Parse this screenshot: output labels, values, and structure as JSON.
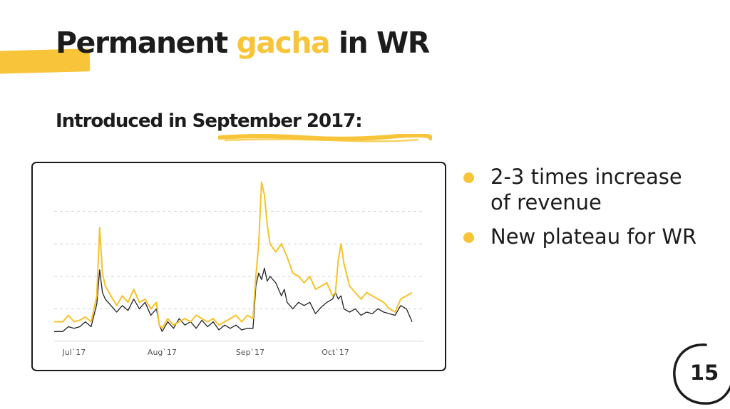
{
  "slide": {
    "title_part1": "Permanent ",
    "title_accent": "gacha",
    "title_part2": " in WR",
    "subtitle_prefix": "Introduced in ",
    "subtitle_highlight": "September 2017:",
    "page_number": "15"
  },
  "bullets": [
    {
      "text_line1": "2-3 times increase",
      "text_line2": "of revenue"
    },
    {
      "text_line1": "New plateau for WR"
    }
  ],
  "colors": {
    "accent": "#f8c53a",
    "text": "#1c1c1c",
    "series_black": "#222222",
    "series_yellow": "#f5c229"
  },
  "chart_data": {
    "type": "line",
    "xlabel": "",
    "ylabel": "",
    "x_ticks": [
      "Jul`17",
      "Aug`17",
      "Sep`17",
      "Oct`17"
    ],
    "x_tick_days": [
      7,
      38,
      69,
      99
    ],
    "x_range": [
      0,
      130
    ],
    "ylim": [
      0,
      100
    ],
    "y_gridlines": [
      20,
      40,
      60,
      80
    ],
    "grid": true,
    "legend": "none",
    "series": [
      {
        "color": "#222222",
        "points": [
          [
            0,
            6
          ],
          [
            3,
            6
          ],
          [
            5,
            9
          ],
          [
            7,
            8
          ],
          [
            9,
            9
          ],
          [
            11,
            12
          ],
          [
            13,
            9
          ],
          [
            15,
            23
          ],
          [
            16,
            44
          ],
          [
            17,
            30
          ],
          [
            18,
            26
          ],
          [
            20,
            22
          ],
          [
            22,
            18
          ],
          [
            24,
            22
          ],
          [
            26,
            19
          ],
          [
            28,
            26
          ],
          [
            30,
            20
          ],
          [
            32,
            24
          ],
          [
            34,
            16
          ],
          [
            36,
            20
          ],
          [
            37,
            10
          ],
          [
            38,
            6
          ],
          [
            40,
            12
          ],
          [
            42,
            8
          ],
          [
            44,
            14
          ],
          [
            46,
            10
          ],
          [
            48,
            12
          ],
          [
            50,
            8
          ],
          [
            52,
            13
          ],
          [
            54,
            9
          ],
          [
            56,
            12
          ],
          [
            58,
            7
          ],
          [
            60,
            10
          ],
          [
            62,
            8
          ],
          [
            64,
            10
          ],
          [
            66,
            7
          ],
          [
            68,
            8
          ],
          [
            70,
            8
          ],
          [
            71,
            34
          ],
          [
            72,
            42
          ],
          [
            73,
            38
          ],
          [
            74,
            45
          ],
          [
            75,
            37
          ],
          [
            76,
            40
          ],
          [
            78,
            36
          ],
          [
            80,
            28
          ],
          [
            81,
            32
          ],
          [
            82,
            24
          ],
          [
            84,
            20
          ],
          [
            86,
            24
          ],
          [
            88,
            22
          ],
          [
            90,
            24
          ],
          [
            92,
            17
          ],
          [
            94,
            21
          ],
          [
            96,
            24
          ],
          [
            98,
            26
          ],
          [
            99,
            30
          ],
          [
            100,
            26
          ],
          [
            101,
            28
          ],
          [
            102,
            20
          ],
          [
            104,
            18
          ],
          [
            106,
            20
          ],
          [
            108,
            16
          ],
          [
            110,
            18
          ],
          [
            112,
            17
          ],
          [
            114,
            20
          ],
          [
            116,
            18
          ],
          [
            118,
            17
          ],
          [
            120,
            16
          ],
          [
            122,
            22
          ],
          [
            124,
            20
          ],
          [
            126,
            12
          ]
        ]
      },
      {
        "color": "#f5c229",
        "points": [
          [
            0,
            12
          ],
          [
            3,
            12
          ],
          [
            5,
            16
          ],
          [
            7,
            12
          ],
          [
            9,
            13
          ],
          [
            11,
            15
          ],
          [
            13,
            12
          ],
          [
            15,
            28
          ],
          [
            16,
            70
          ],
          [
            17,
            42
          ],
          [
            18,
            34
          ],
          [
            20,
            28
          ],
          [
            22,
            22
          ],
          [
            24,
            28
          ],
          [
            26,
            24
          ],
          [
            28,
            32
          ],
          [
            30,
            24
          ],
          [
            32,
            26
          ],
          [
            34,
            20
          ],
          [
            36,
            24
          ],
          [
            37,
            10
          ],
          [
            38,
            8
          ],
          [
            40,
            14
          ],
          [
            42,
            10
          ],
          [
            44,
            12
          ],
          [
            46,
            14
          ],
          [
            48,
            12
          ],
          [
            50,
            16
          ],
          [
            52,
            14
          ],
          [
            54,
            12
          ],
          [
            56,
            14
          ],
          [
            58,
            10
          ],
          [
            60,
            12
          ],
          [
            62,
            14
          ],
          [
            64,
            16
          ],
          [
            66,
            12
          ],
          [
            68,
            16
          ],
          [
            70,
            14
          ],
          [
            71,
            40
          ],
          [
            72,
            60
          ],
          [
            73,
            98
          ],
          [
            74,
            90
          ],
          [
            75,
            72
          ],
          [
            76,
            60
          ],
          [
            78,
            55
          ],
          [
            80,
            60
          ],
          [
            82,
            52
          ],
          [
            84,
            42
          ],
          [
            86,
            40
          ],
          [
            88,
            36
          ],
          [
            90,
            40
          ],
          [
            92,
            32
          ],
          [
            94,
            34
          ],
          [
            96,
            36
          ],
          [
            98,
            28
          ],
          [
            99,
            30
          ],
          [
            100,
            50
          ],
          [
            101,
            60
          ],
          [
            102,
            48
          ],
          [
            104,
            34
          ],
          [
            106,
            30
          ],
          [
            108,
            26
          ],
          [
            110,
            30
          ],
          [
            112,
            28
          ],
          [
            114,
            26
          ],
          [
            116,
            24
          ],
          [
            118,
            20
          ],
          [
            120,
            18
          ],
          [
            122,
            26
          ],
          [
            124,
            28
          ],
          [
            126,
            30
          ]
        ]
      }
    ]
  }
}
